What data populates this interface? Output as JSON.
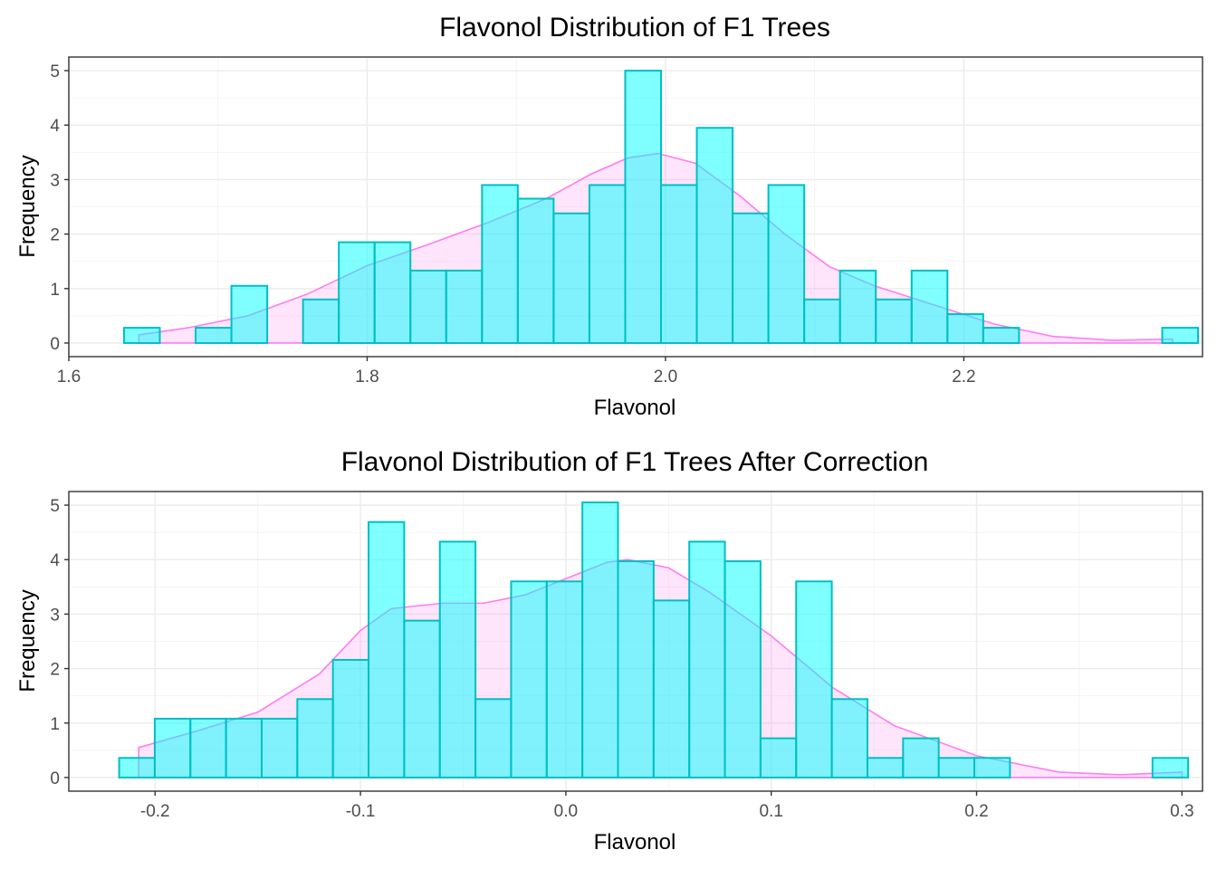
{
  "chart_data": [
    {
      "type": "bar",
      "title": "Flavonol Distribution of F1 Trees",
      "xlabel": "Flavonol",
      "ylabel": "Frequency",
      "xlim": [
        1.6,
        2.36
      ],
      "ylim": [
        -0.25,
        5.25
      ],
      "xticks": [
        1.6,
        1.8,
        2.0,
        2.2
      ],
      "xtick_labels": [
        "1.6",
        "1.8",
        "2.0",
        "2.2"
      ],
      "yticks": [
        0,
        1,
        2,
        3,
        4,
        5
      ],
      "ytick_labels": [
        "0",
        "1",
        "2",
        "3",
        "4",
        "5"
      ],
      "grid": true,
      "bins": {
        "start": 1.637,
        "width": 0.024,
        "values": [
          0.28,
          0,
          0.28,
          1.05,
          0,
          0.8,
          1.85,
          1.85,
          1.33,
          1.33,
          2.9,
          2.65,
          2.38,
          2.9,
          5.0,
          2.9,
          3.95,
          2.38,
          2.9,
          0.8,
          1.33,
          0.8,
          1.33,
          0.53,
          0.28,
          0,
          0,
          0,
          0,
          0.28
        ]
      },
      "density": {
        "x": [
          1.647,
          1.68,
          1.72,
          1.76,
          1.8,
          1.84,
          1.88,
          1.92,
          1.95,
          1.975,
          1.995,
          2.02,
          2.05,
          2.08,
          2.11,
          2.14,
          2.18,
          2.22,
          2.26,
          2.3,
          2.34
        ],
        "y": [
          0.15,
          0.28,
          0.5,
          0.9,
          1.42,
          1.8,
          2.2,
          2.65,
          3.1,
          3.4,
          3.48,
          3.3,
          2.7,
          2.0,
          1.4,
          1.05,
          0.7,
          0.35,
          0.12,
          0.05,
          0.07
        ]
      },
      "colors": {
        "bar_fill": "#00ffff",
        "bar_outline": "#00bfc4",
        "density": "#ff7cf0"
      }
    },
    {
      "type": "bar",
      "title": "Flavonol Distribution of F1 Trees After Correction",
      "xlabel": "Flavonol",
      "ylabel": "Frequency",
      "xlim": [
        -0.242,
        0.31
      ],
      "ylim": [
        -0.25,
        5.25
      ],
      "xticks": [
        -0.2,
        -0.1,
        0.0,
        0.1,
        0.2,
        0.3
      ],
      "xtick_labels": [
        "-0.2",
        "-0.1",
        "0.0",
        "0.1",
        "0.2",
        "0.3"
      ],
      "yticks": [
        0,
        1,
        2,
        3,
        4,
        5
      ],
      "ytick_labels": [
        "0",
        "1",
        "2",
        "3",
        "4",
        "5"
      ],
      "grid": true,
      "bins": {
        "start": -0.2175,
        "width": 0.01735,
        "values": [
          0.36,
          1.08,
          1.08,
          1.08,
          1.08,
          1.44,
          2.16,
          4.69,
          2.88,
          4.33,
          1.44,
          3.6,
          3.6,
          5.05,
          3.97,
          3.25,
          4.33,
          3.97,
          0.72,
          3.6,
          1.44,
          0.36,
          0.72,
          0.36,
          0.36,
          0,
          0,
          0,
          0,
          0.36
        ]
      },
      "density": {
        "x": [
          -0.208,
          -0.18,
          -0.15,
          -0.12,
          -0.1,
          -0.085,
          -0.06,
          -0.04,
          -0.02,
          0.0,
          0.02,
          0.03,
          0.05,
          0.07,
          0.1,
          0.13,
          0.16,
          0.2,
          0.24,
          0.27,
          0.3
        ],
        "y": [
          0.55,
          0.85,
          1.2,
          1.9,
          2.7,
          3.1,
          3.2,
          3.2,
          3.35,
          3.65,
          3.95,
          4.0,
          3.85,
          3.4,
          2.6,
          1.65,
          0.95,
          0.4,
          0.1,
          0.05,
          0.1
        ]
      },
      "colors": {
        "bar_fill": "#00ffff",
        "bar_outline": "#00bfc4",
        "density": "#ff7cf0"
      }
    }
  ]
}
